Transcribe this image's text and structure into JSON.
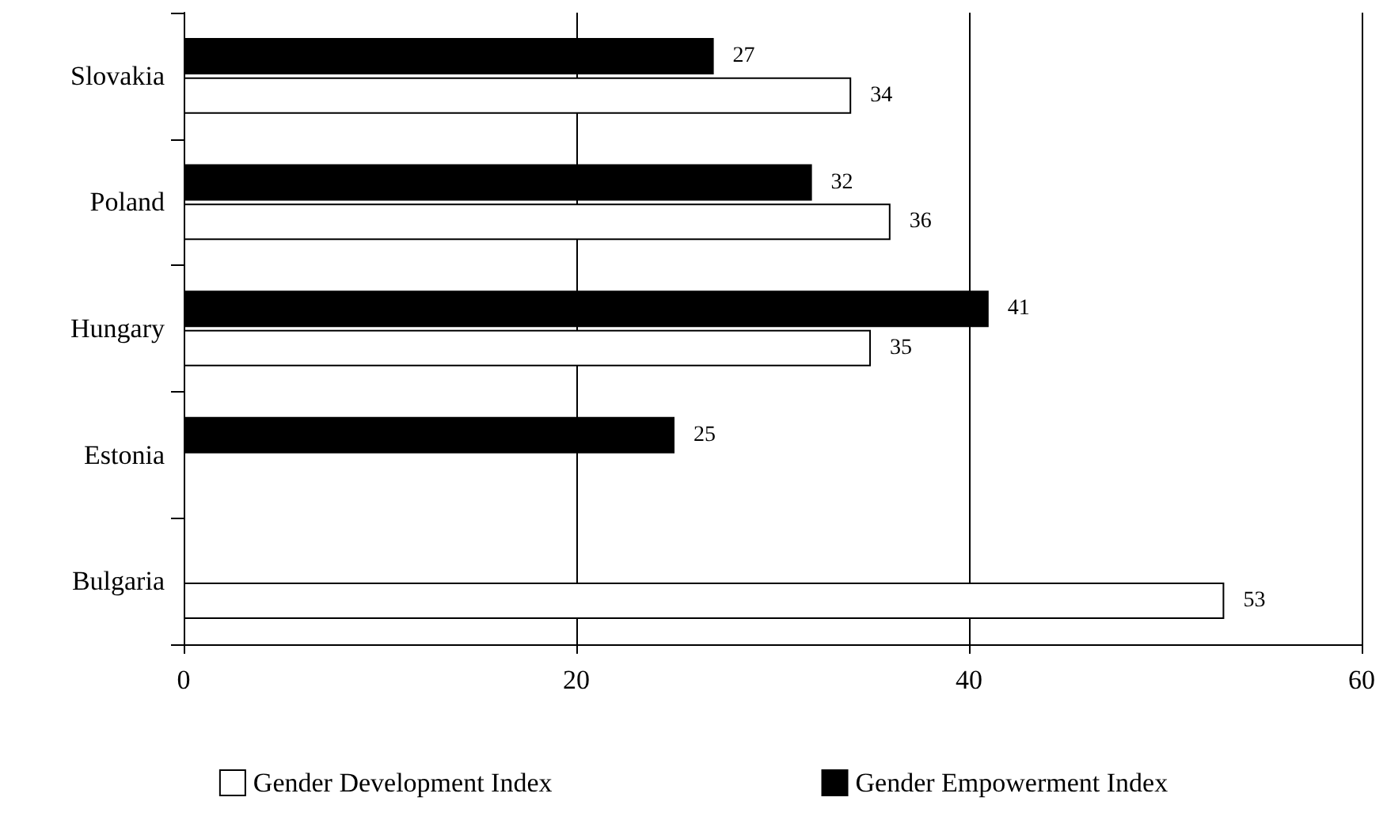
{
  "chart_data": {
    "type": "bar",
    "orientation": "horizontal",
    "categories": [
      "Slovakia",
      "Poland",
      "Hungary",
      "Estonia",
      "Bulgaria"
    ],
    "series": [
      {
        "name": "Gender Empowerment Index",
        "color": "#000000",
        "values": [
          27,
          32,
          41,
          25,
          null
        ]
      },
      {
        "name": "Gender Development Index",
        "color": "#ffffff",
        "values": [
          34,
          36,
          35,
          null,
          53
        ]
      }
    ],
    "xlim": [
      0,
      60
    ],
    "xticks": [
      0,
      20,
      40,
      60
    ],
    "grid": "x",
    "legend": "bottom",
    "data_labels": true
  }
}
